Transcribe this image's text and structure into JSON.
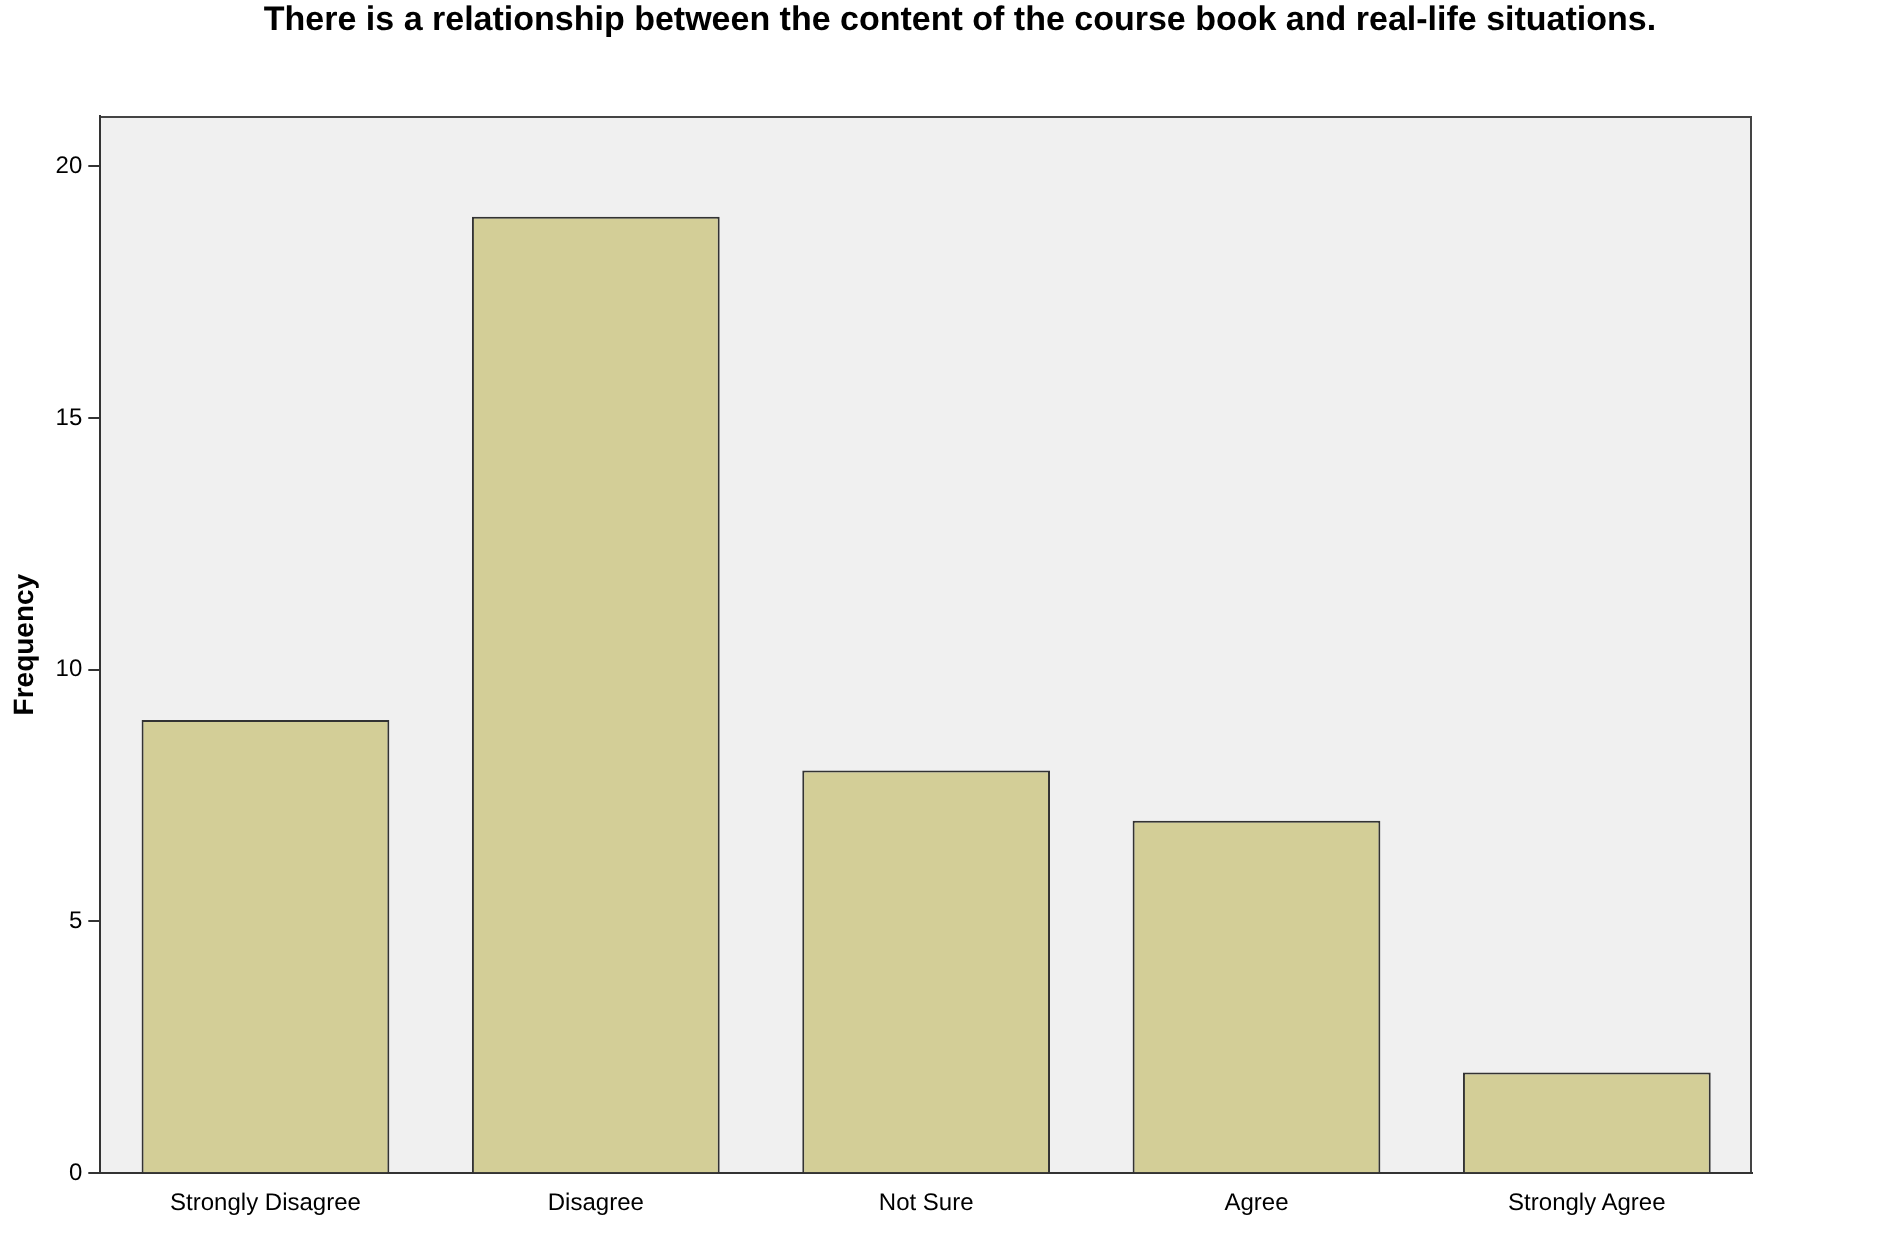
{
  "chart_data": {
    "type": "bar",
    "title": "There is a relationship between the content of the course book and real-life situations.",
    "ylabel": "Frequency",
    "categories": [
      "Strongly Disagree",
      "Disagree",
      "Not Sure",
      "Agree",
      "Strongly Agree"
    ],
    "values": [
      9,
      19,
      8,
      7,
      2
    ],
    "color": "#d3ce97",
    "ylim": [
      0,
      21
    ],
    "yticks": [
      0,
      5,
      10,
      15,
      20
    ],
    "grid": false,
    "legend": false
  }
}
